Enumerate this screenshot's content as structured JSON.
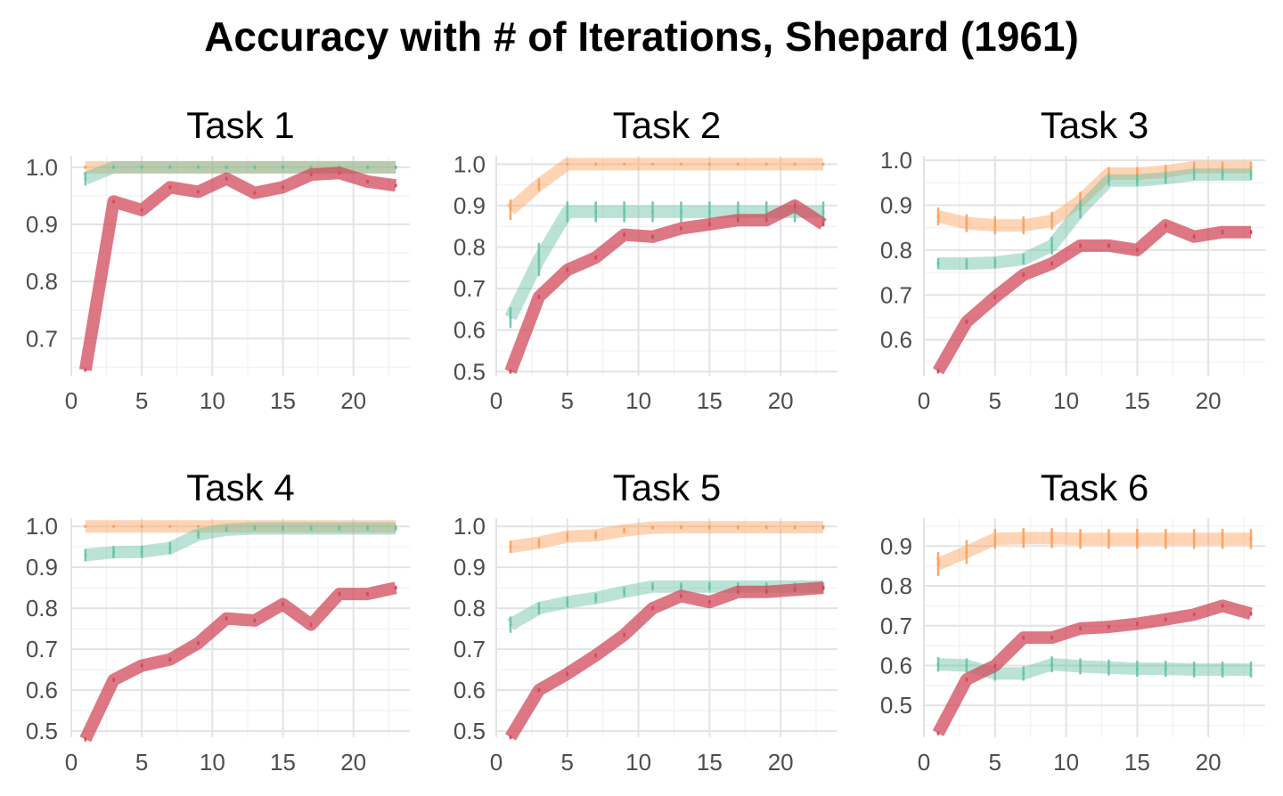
{
  "title": "Accuracy with # of Iterations, Shepard (1961)",
  "colors": {
    "series1": "#fc9f5b",
    "series2": "#66c2a5",
    "series3": "#d1495b"
  },
  "chart_data": [
    {
      "type": "line",
      "title": "Task 1",
      "x": [
        1,
        3,
        5,
        7,
        9,
        11,
        13,
        15,
        17,
        19,
        21,
        23
      ],
      "xlim": [
        0,
        24
      ],
      "ylim": [
        0.635,
        1.02
      ],
      "xticks": [
        0,
        5,
        10,
        15,
        20
      ],
      "yticks": [
        0.7,
        0.8,
        0.9,
        1.0
      ],
      "xtick_labels": [
        "0",
        "5",
        "10",
        "15",
        "20"
      ],
      "ytick_labels": [
        "0.7",
        "0.8",
        "0.9",
        "1.0"
      ],
      "series": [
        {
          "color": "#fc9f5b",
          "values": [
            1.0,
            1.0,
            1.0,
            1.0,
            1.0,
            1.0,
            1.0,
            1.0,
            1.0,
            1.0,
            1.0,
            1.0
          ],
          "err": [
            0.003,
            0.003,
            0.003,
            0.003,
            0.003,
            0.003,
            0.003,
            0.003,
            0.003,
            0.003,
            0.003,
            0.003
          ]
        },
        {
          "color": "#66c2a5",
          "values": [
            0.98,
            1.0,
            1.0,
            1.0,
            1.0,
            1.0,
            1.0,
            1.0,
            1.0,
            1.0,
            1.0,
            1.0
          ],
          "err": [
            0.012,
            0.003,
            0.003,
            0.003,
            0.003,
            0.003,
            0.003,
            0.003,
            0.003,
            0.003,
            0.003,
            0.003
          ]
        },
        {
          "color": "#d1495b",
          "values": [
            0.645,
            0.94,
            0.925,
            0.965,
            0.957,
            0.98,
            0.955,
            0.965,
            0.987,
            0.99,
            0.975,
            0.968
          ],
          "err": [
            0.003,
            0.003,
            0.003,
            0.003,
            0.003,
            0.003,
            0.003,
            0.003,
            0.003,
            0.003,
            0.003,
            0.003
          ]
        }
      ]
    },
    {
      "type": "line",
      "title": "Task 2",
      "x": [
        1,
        3,
        5,
        7,
        9,
        11,
        13,
        15,
        17,
        19,
        21,
        23
      ],
      "xlim": [
        0,
        24
      ],
      "ylim": [
        0.49,
        1.02
      ],
      "xticks": [
        0,
        5,
        10,
        15,
        20
      ],
      "yticks": [
        0.5,
        0.6,
        0.7,
        0.8,
        0.9,
        1.0
      ],
      "xtick_labels": [
        "0",
        "5",
        "10",
        "15",
        "20"
      ],
      "ytick_labels": [
        "0.5",
        "0.6",
        "0.7",
        "0.8",
        "0.9",
        "1.0"
      ],
      "series": [
        {
          "color": "#fc9f5b",
          "values": [
            0.89,
            0.95,
            1.0,
            1.0,
            1.0,
            1.0,
            1.0,
            1.0,
            1.0,
            1.0,
            1.0,
            1.0
          ],
          "err": [
            0.025,
            0.015,
            0.003,
            0.003,
            0.003,
            0.003,
            0.003,
            0.003,
            0.003,
            0.003,
            0.003,
            0.003
          ]
        },
        {
          "color": "#66c2a5",
          "values": [
            0.63,
            0.77,
            0.885,
            0.885,
            0.885,
            0.885,
            0.885,
            0.885,
            0.885,
            0.885,
            0.885,
            0.885
          ],
          "err": [
            0.025,
            0.04,
            0.025,
            0.025,
            0.025,
            0.025,
            0.025,
            0.025,
            0.025,
            0.025,
            0.025,
            0.025
          ]
        },
        {
          "color": "#d1495b",
          "values": [
            0.5,
            0.68,
            0.745,
            0.775,
            0.83,
            0.825,
            0.845,
            0.855,
            0.865,
            0.865,
            0.9,
            0.855
          ],
          "err": [
            0.005,
            0.005,
            0.005,
            0.005,
            0.005,
            0.005,
            0.005,
            0.005,
            0.005,
            0.005,
            0.005,
            0.005
          ]
        }
      ]
    },
    {
      "type": "line",
      "title": "Task 3",
      "x": [
        1,
        3,
        5,
        7,
        9,
        11,
        13,
        15,
        17,
        19,
        21,
        23
      ],
      "xlim": [
        0,
        24
      ],
      "ylim": [
        0.52,
        1.01
      ],
      "xticks": [
        0,
        5,
        10,
        15,
        20
      ],
      "yticks": [
        0.6,
        0.7,
        0.8,
        0.9,
        1.0
      ],
      "xtick_labels": [
        "0",
        "5",
        "10",
        "15",
        "20"
      ],
      "ytick_labels": [
        "0.6",
        "0.7",
        "0.8",
        "0.9",
        "1.0"
      ],
      "series": [
        {
          "color": "#fc9f5b",
          "values": [
            0.875,
            0.86,
            0.855,
            0.855,
            0.865,
            0.91,
            0.97,
            0.97,
            0.975,
            0.985,
            0.985,
            0.985
          ],
          "err": [
            0.02,
            0.02,
            0.02,
            0.02,
            0.02,
            0.02,
            0.015,
            0.015,
            0.015,
            0.012,
            0.012,
            0.012
          ]
        },
        {
          "color": "#66c2a5",
          "values": [
            0.77,
            0.77,
            0.772,
            0.78,
            0.81,
            0.89,
            0.955,
            0.955,
            0.96,
            0.968,
            0.968,
            0.968
          ],
          "err": [
            0.012,
            0.012,
            0.012,
            0.012,
            0.02,
            0.02,
            0.012,
            0.012,
            0.012,
            0.012,
            0.012,
            0.012
          ]
        },
        {
          "color": "#d1495b",
          "values": [
            0.53,
            0.64,
            0.695,
            0.745,
            0.77,
            0.81,
            0.81,
            0.8,
            0.855,
            0.83,
            0.84,
            0.84
          ],
          "err": [
            0.005,
            0.005,
            0.005,
            0.005,
            0.005,
            0.005,
            0.005,
            0.005,
            0.005,
            0.005,
            0.005,
            0.005
          ]
        }
      ]
    },
    {
      "type": "line",
      "title": "Task 4",
      "x": [
        1,
        3,
        5,
        7,
        9,
        11,
        13,
        15,
        17,
        19,
        21,
        23
      ],
      "xlim": [
        0,
        24
      ],
      "ylim": [
        0.485,
        1.02
      ],
      "xticks": [
        0,
        5,
        10,
        15,
        20
      ],
      "yticks": [
        0.5,
        0.6,
        0.7,
        0.8,
        0.9,
        1.0
      ],
      "xtick_labels": [
        "0",
        "5",
        "10",
        "15",
        "20"
      ],
      "ytick_labels": [
        "0.5",
        "0.6",
        "0.7",
        "0.8",
        "0.9",
        "1.0"
      ],
      "series": [
        {
          "color": "#fc9f5b",
          "values": [
            1.0,
            1.0,
            1.0,
            1.0,
            1.0,
            1.0,
            1.0,
            1.0,
            1.0,
            1.0,
            1.0,
            1.0
          ],
          "err": [
            0.003,
            0.003,
            0.003,
            0.003,
            0.003,
            0.003,
            0.003,
            0.003,
            0.003,
            0.003,
            0.003,
            0.003
          ]
        },
        {
          "color": "#66c2a5",
          "values": [
            0.93,
            0.937,
            0.938,
            0.947,
            0.98,
            0.992,
            0.995,
            0.995,
            0.995,
            0.995,
            0.995,
            0.995
          ],
          "err": [
            0.015,
            0.015,
            0.015,
            0.015,
            0.01,
            0.005,
            0.005,
            0.005,
            0.005,
            0.005,
            0.005,
            0.005
          ]
        },
        {
          "color": "#d1495b",
          "values": [
            0.48,
            0.625,
            0.66,
            0.675,
            0.715,
            0.775,
            0.77,
            0.81,
            0.76,
            0.835,
            0.835,
            0.85
          ],
          "err": [
            0.005,
            0.005,
            0.005,
            0.005,
            0.005,
            0.005,
            0.005,
            0.005,
            0.005,
            0.005,
            0.005,
            0.005
          ]
        }
      ]
    },
    {
      "type": "line",
      "title": "Task 5",
      "x": [
        1,
        3,
        5,
        7,
        9,
        11,
        13,
        15,
        17,
        19,
        21,
        23
      ],
      "xlim": [
        0,
        24
      ],
      "ylim": [
        0.485,
        1.02
      ],
      "xticks": [
        0,
        5,
        10,
        15,
        20
      ],
      "yticks": [
        0.5,
        0.6,
        0.7,
        0.8,
        0.9,
        1.0
      ],
      "xtick_labels": [
        "0",
        "5",
        "10",
        "15",
        "20"
      ],
      "ytick_labels": [
        "0.5",
        "0.6",
        "0.7",
        "0.8",
        "0.9",
        "1.0"
      ],
      "series": [
        {
          "color": "#fc9f5b",
          "values": [
            0.95,
            0.96,
            0.975,
            0.978,
            0.99,
            0.997,
            0.998,
            0.998,
            0.998,
            0.998,
            0.998,
            0.998
          ],
          "err": [
            0.015,
            0.012,
            0.01,
            0.01,
            0.007,
            0.005,
            0.005,
            0.005,
            0.005,
            0.005,
            0.005,
            0.005
          ]
        },
        {
          "color": "#66c2a5",
          "values": [
            0.76,
            0.8,
            0.815,
            0.825,
            0.84,
            0.853,
            0.853,
            0.853,
            0.853,
            0.853,
            0.853,
            0.853
          ],
          "err": [
            0.02,
            0.015,
            0.012,
            0.012,
            0.012,
            0.01,
            0.01,
            0.01,
            0.01,
            0.01,
            0.01,
            0.01
          ]
        },
        {
          "color": "#d1495b",
          "values": [
            0.485,
            0.6,
            0.64,
            0.685,
            0.735,
            0.8,
            0.83,
            0.815,
            0.84,
            0.84,
            0.845,
            0.85
          ],
          "err": [
            0.005,
            0.005,
            0.005,
            0.005,
            0.005,
            0.005,
            0.005,
            0.005,
            0.005,
            0.005,
            0.005,
            0.005
          ]
        }
      ]
    },
    {
      "type": "line",
      "title": "Task 6",
      "x": [
        1,
        3,
        5,
        7,
        9,
        11,
        13,
        15,
        17,
        19,
        21,
        23
      ],
      "xlim": [
        0,
        24
      ],
      "ylim": [
        0.42,
        0.97
      ],
      "xticks": [
        0,
        5,
        10,
        15,
        20
      ],
      "yticks": [
        0.5,
        0.6,
        0.7,
        0.8,
        0.9
      ],
      "xtick_labels": [
        "0",
        "5",
        "10",
        "15",
        "20"
      ],
      "ytick_labels": [
        "0.5",
        "0.6",
        "0.7",
        "0.8",
        "0.9"
      ],
      "series": [
        {
          "color": "#fc9f5b",
          "values": [
            0.855,
            0.885,
            0.918,
            0.92,
            0.92,
            0.918,
            0.918,
            0.918,
            0.918,
            0.918,
            0.918,
            0.918
          ],
          "err": [
            0.03,
            0.03,
            0.025,
            0.025,
            0.025,
            0.025,
            0.025,
            0.025,
            0.025,
            0.025,
            0.025,
            0.025
          ]
        },
        {
          "color": "#66c2a5",
          "values": [
            0.603,
            0.6,
            0.58,
            0.58,
            0.603,
            0.598,
            0.595,
            0.592,
            0.592,
            0.59,
            0.59,
            0.59
          ],
          "err": [
            0.018,
            0.018,
            0.018,
            0.018,
            0.02,
            0.02,
            0.02,
            0.02,
            0.02,
            0.02,
            0.02,
            0.02
          ]
        },
        {
          "color": "#d1495b",
          "values": [
            0.43,
            0.565,
            0.6,
            0.67,
            0.67,
            0.693,
            0.697,
            0.705,
            0.716,
            0.728,
            0.75,
            0.73
          ],
          "err": [
            0.005,
            0.005,
            0.005,
            0.005,
            0.005,
            0.005,
            0.005,
            0.005,
            0.005,
            0.005,
            0.005,
            0.005
          ]
        }
      ]
    }
  ]
}
